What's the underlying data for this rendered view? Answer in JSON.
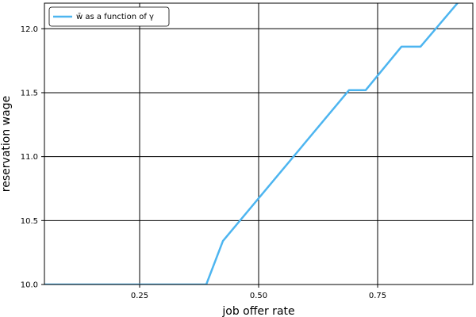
{
  "chart_data": {
    "type": "line",
    "xlabel": "job offer rate",
    "ylabel": "reservation wage",
    "xlim": [
      0.05,
      0.95
    ],
    "ylim": [
      10.0,
      12.2
    ],
    "xticks": [
      0.25,
      0.5,
      0.75
    ],
    "xtick_labels": [
      "0.25",
      "0.50",
      "0.75"
    ],
    "yticks": [
      10.0,
      10.5,
      11.0,
      11.5,
      12.0
    ],
    "ytick_labels": [
      "10.0",
      "10.5",
      "11.0",
      "11.5",
      "12.0"
    ],
    "grid": true,
    "legend_position": "top-left",
    "series": [
      {
        "name": "w̄ as a function of γ",
        "color": "#4db5f0",
        "x": [
          0.05,
          0.39,
          0.425,
          0.69,
          0.725,
          0.8,
          0.84,
          0.92
        ],
        "y": [
          10.0,
          10.0,
          10.34,
          11.52,
          11.52,
          11.86,
          11.86,
          12.21
        ]
      }
    ]
  }
}
